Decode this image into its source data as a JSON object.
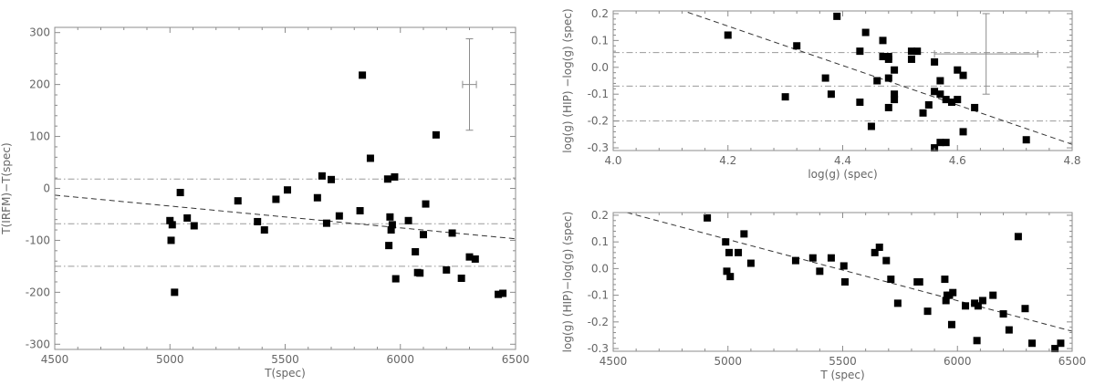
{
  "chart_data": [
    {
      "type": "scatter",
      "xlabel": "T(spec)",
      "ylabel": "T(IRFM)−T(spec)",
      "xlim": [
        4500,
        6500
      ],
      "ylim": [
        -310,
        310
      ],
      "xticks": [
        4500,
        5000,
        5500,
        6000,
        6500
      ],
      "yticks": [
        -300,
        -200,
        -100,
        0,
        100,
        200,
        300
      ],
      "ytick_labels": [
        "-300",
        "-200",
        "-100",
        "0",
        "100",
        "200",
        "300"
      ],
      "grid": false,
      "points": [
        [
          5000,
          -62
        ],
        [
          5005,
          -100
        ],
        [
          5010,
          -70
        ],
        [
          5020,
          -200
        ],
        [
          5045,
          -8
        ],
        [
          5075,
          -57
        ],
        [
          5105,
          -72
        ],
        [
          5295,
          -24
        ],
        [
          5380,
          -64
        ],
        [
          5410,
          -80
        ],
        [
          5460,
          -21
        ],
        [
          5510,
          -3
        ],
        [
          5640,
          -18
        ],
        [
          5660,
          24
        ],
        [
          5680,
          -67
        ],
        [
          5700,
          17
        ],
        [
          5735,
          -53
        ],
        [
          5825,
          -43
        ],
        [
          5835,
          218
        ],
        [
          5870,
          58
        ],
        [
          5945,
          18
        ],
        [
          5950,
          -110
        ],
        [
          5955,
          -55
        ],
        [
          5960,
          -80
        ],
        [
          5965,
          -70
        ],
        [
          5975,
          22
        ],
        [
          5980,
          -174
        ],
        [
          6035,
          -62
        ],
        [
          6065,
          -122
        ],
        [
          6075,
          -162
        ],
        [
          6085,
          -163
        ],
        [
          6100,
          -89
        ],
        [
          6110,
          -30
        ],
        [
          6155,
          103
        ],
        [
          6200,
          -157
        ],
        [
          6225,
          -86
        ],
        [
          6265,
          -173
        ],
        [
          6300,
          -132
        ],
        [
          6325,
          -136
        ],
        [
          6425,
          -204
        ],
        [
          6445,
          -202
        ]
      ],
      "trend_line": {
        "x": [
          4500,
          6500
        ],
        "y": [
          -13,
          -97
        ]
      },
      "reference_lines": [
        18,
        -68,
        -150
      ],
      "error_bar": {
        "x": 6300,
        "y": 200,
        "x_err": 30,
        "y_err": 88
      }
    },
    {
      "type": "scatter",
      "xlabel": "log(g) (spec)",
      "ylabel": "log(g) (HIP) −log(g) (spec)",
      "xlim": [
        4.0,
        4.8
      ],
      "ylim": [
        -0.31,
        0.21
      ],
      "xticks": [
        4.0,
        4.2,
        4.4,
        4.6,
        4.8
      ],
      "xtick_labels": [
        "4.0",
        "4.2",
        "4.4",
        "4.6",
        "4.8"
      ],
      "yticks": [
        -0.3,
        -0.2,
        -0.1,
        0.0,
        0.1,
        0.2
      ],
      "ytick_labels": [
        "-0.3",
        "-0.2",
        "-0.1",
        "0.0",
        "0.1",
        "0.2"
      ],
      "grid": false,
      "points": [
        [
          4.2,
          0.12
        ],
        [
          4.3,
          -0.11
        ],
        [
          4.32,
          0.08
        ],
        [
          4.37,
          -0.04
        ],
        [
          4.38,
          -0.1
        ],
        [
          4.39,
          0.19
        ],
        [
          4.43,
          0.06
        ],
        [
          4.43,
          -0.13
        ],
        [
          4.44,
          0.13
        ],
        [
          4.45,
          -0.22
        ],
        [
          4.46,
          -0.05
        ],
        [
          4.47,
          0.1
        ],
        [
          4.47,
          0.04
        ],
        [
          4.48,
          0.04
        ],
        [
          4.48,
          0.03
        ],
        [
          4.48,
          -0.04
        ],
        [
          4.48,
          -0.15
        ],
        [
          4.49,
          -0.12
        ],
        [
          4.49,
          -0.1
        ],
        [
          4.49,
          -0.01
        ],
        [
          4.52,
          0.06
        ],
        [
          4.52,
          0.03
        ],
        [
          4.53,
          0.06
        ],
        [
          4.54,
          -0.17
        ],
        [
          4.55,
          -0.14
        ],
        [
          4.56,
          0.02
        ],
        [
          4.56,
          -0.09
        ],
        [
          4.56,
          -0.3
        ],
        [
          4.57,
          -0.05
        ],
        [
          4.57,
          -0.1
        ],
        [
          4.57,
          -0.28
        ],
        [
          4.58,
          -0.12
        ],
        [
          4.58,
          -0.28
        ],
        [
          4.59,
          -0.13
        ],
        [
          4.6,
          -0.01
        ],
        [
          4.6,
          -0.12
        ],
        [
          4.61,
          -0.03
        ],
        [
          4.61,
          -0.24
        ],
        [
          4.63,
          -0.15
        ],
        [
          4.72,
          -0.27
        ]
      ],
      "trend_line": {
        "x": [
          4.13,
          4.8
        ],
        "y": [
          0.205,
          -0.287
        ]
      },
      "reference_lines": [
        0.055,
        -0.07,
        -0.2
      ],
      "error_bar": {
        "x": 4.65,
        "y": 0.05,
        "x_err": 0.09,
        "y_err": 0.15
      }
    },
    {
      "type": "scatter",
      "xlabel": "T (spec)",
      "ylabel": "log(g) (HIP)−log(g) (spec)",
      "xlim": [
        4500,
        6500
      ],
      "ylim": [
        -0.31,
        0.21
      ],
      "xticks": [
        4500,
        5000,
        5500,
        6000,
        6500
      ],
      "yticks": [
        -0.3,
        -0.2,
        -0.1,
        0.0,
        0.1,
        0.2
      ],
      "ytick_labels": [
        "-0.3",
        "-0.2",
        "-0.1",
        "0.0",
        "0.1",
        "0.2"
      ],
      "grid": false,
      "points": [
        [
          4910,
          0.19
        ],
        [
          4990,
          0.1
        ],
        [
          4995,
          -0.01
        ],
        [
          5005,
          0.06
        ],
        [
          5010,
          -0.03
        ],
        [
          5045,
          0.06
        ],
        [
          5070,
          0.13
        ],
        [
          5100,
          0.02
        ],
        [
          5295,
          0.03
        ],
        [
          5370,
          0.04
        ],
        [
          5400,
          -0.01
        ],
        [
          5450,
          0.04
        ],
        [
          5505,
          0.01
        ],
        [
          5510,
          -0.05
        ],
        [
          5640,
          0.06
        ],
        [
          5660,
          0.08
        ],
        [
          5690,
          0.03
        ],
        [
          5710,
          -0.04
        ],
        [
          5740,
          -0.13
        ],
        [
          5825,
          -0.05
        ],
        [
          5835,
          -0.05
        ],
        [
          5870,
          -0.16
        ],
        [
          5945,
          -0.04
        ],
        [
          5950,
          -0.12
        ],
        [
          5955,
          -0.1
        ],
        [
          5965,
          -0.1
        ],
        [
          5975,
          -0.21
        ],
        [
          5980,
          -0.09
        ],
        [
          6035,
          -0.14
        ],
        [
          6075,
          -0.13
        ],
        [
          6085,
          -0.27
        ],
        [
          6090,
          -0.14
        ],
        [
          6110,
          -0.12
        ],
        [
          6155,
          -0.1
        ],
        [
          6200,
          -0.17
        ],
        [
          6225,
          -0.23
        ],
        [
          6265,
          0.12
        ],
        [
          6295,
          -0.15
        ],
        [
          6325,
          -0.28
        ],
        [
          6425,
          -0.3
        ],
        [
          6450,
          -0.28
        ]
      ],
      "trend_line": {
        "x": [
          4560,
          6500
        ],
        "y": [
          0.21,
          -0.235
        ]
      },
      "reference_lines": [],
      "error_bar": null
    }
  ]
}
